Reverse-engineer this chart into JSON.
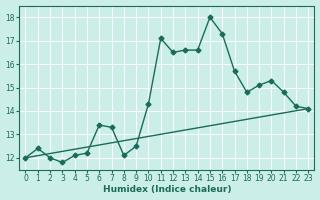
{
  "xlabel": "Humidex (Indice chaleur)",
  "ylabel": "",
  "bg_color": "#cceee8",
  "grid_color": "#ffffff",
  "line_color": "#1a6b5a",
  "xlim": [
    -0.5,
    23.5
  ],
  "ylim": [
    11.5,
    18.5
  ],
  "xticks": [
    0,
    1,
    2,
    3,
    4,
    5,
    6,
    7,
    8,
    9,
    10,
    11,
    12,
    13,
    14,
    15,
    16,
    17,
    18,
    19,
    20,
    21,
    22,
    23
  ],
  "yticks": [
    12,
    13,
    14,
    15,
    16,
    17,
    18
  ],
  "line1_x": [
    0,
    1,
    2,
    3,
    4,
    5,
    6,
    7,
    8,
    9,
    10,
    11,
    12,
    13,
    14,
    15,
    16,
    17,
    18,
    19,
    20,
    21,
    22,
    23
  ],
  "line1_y": [
    12.0,
    12.4,
    12.0,
    11.8,
    12.1,
    12.2,
    13.4,
    13.3,
    12.1,
    12.5,
    14.3,
    17.1,
    16.5,
    16.6,
    16.6,
    18.0,
    17.3,
    15.7,
    14.8,
    15.1,
    15.3,
    14.8,
    14.2,
    14.1
  ],
  "line2_x": [
    0,
    23
  ],
  "line2_y": [
    12.0,
    14.1
  ],
  "marker_size": 2.5,
  "line_width": 1.0,
  "figsize": [
    3.2,
    2.0
  ],
  "dpi": 100
}
